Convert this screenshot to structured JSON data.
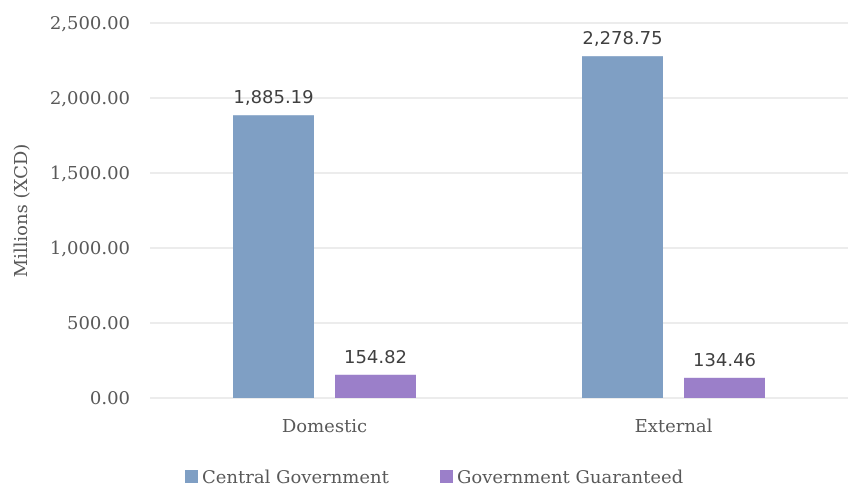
{
  "chart_data": {
    "type": "bar",
    "categories": [
      "Domestic",
      "External"
    ],
    "series": [
      {
        "name": "Central Government",
        "values": [
          1885.19,
          2278.75
        ],
        "labels": [
          "1,885.19",
          "2,278.75"
        ],
        "color": "#7f9fc4"
      },
      {
        "name": "Government Guaranteed",
        "values": [
          154.82,
          134.46
        ],
        "labels": [
          "154.82",
          "134.46"
        ],
        "color": "#9b7fc9"
      }
    ],
    "title": "",
    "xlabel": "",
    "ylabel": "Millions (XCD)",
    "ylim": [
      0,
      2500
    ],
    "yticks": [
      0,
      500,
      1000,
      1500,
      2000,
      2500
    ],
    "ytick_labels": [
      "0.00",
      "500.00",
      "1,000.00",
      "1,500.00",
      "2,000.00",
      "2,500.00"
    ],
    "grid": true,
    "legend_position": "bottom"
  }
}
